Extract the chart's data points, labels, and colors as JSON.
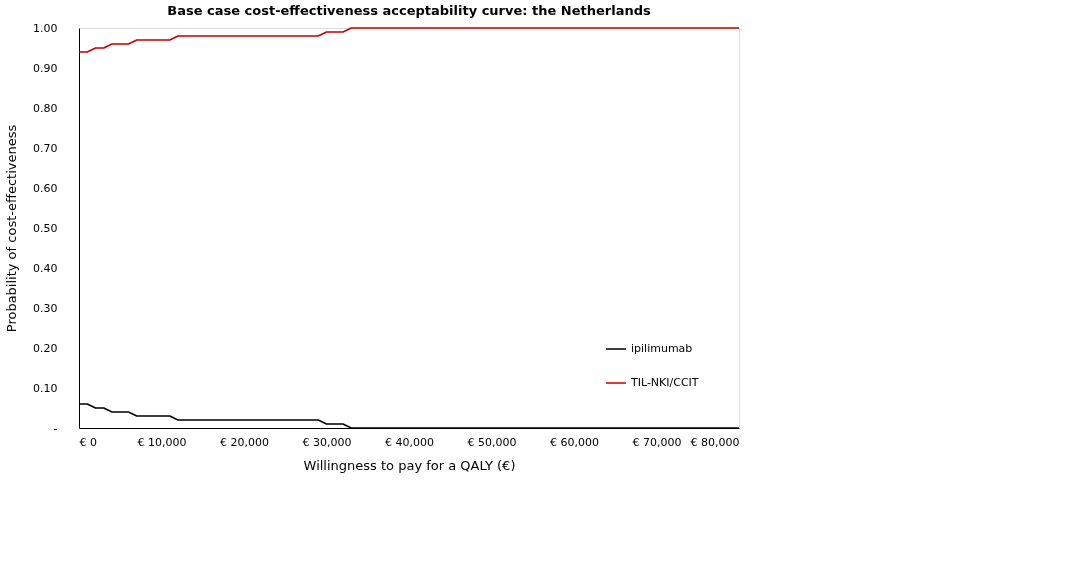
{
  "chart_data": {
    "type": "line",
    "title": "Base case cost-effectiveness acceptability curve: the Netherlands",
    "xlabel": "Willingness to pay for a QALY (€)",
    "ylabel": "Probability of cost-effectiveness",
    "x": [
      0,
      1000,
      2000,
      3000,
      4000,
      6000,
      7000,
      11000,
      12000,
      29000,
      30000,
      32000,
      33000,
      80000
    ],
    "series": [
      {
        "name": "ipilimumab",
        "color": "#000000",
        "values": [
          0.06,
          0.06,
          0.05,
          0.05,
          0.04,
          0.04,
          0.03,
          0.03,
          0.02,
          0.02,
          0.01,
          0.01,
          0.0,
          0.0
        ]
      },
      {
        "name": "TIL-NKI/CCIT",
        "color": "#c00000",
        "values": [
          0.94,
          0.94,
          0.95,
          0.95,
          0.96,
          0.96,
          0.97,
          0.97,
          0.98,
          0.98,
          0.99,
          0.99,
          1.0,
          1.0
        ]
      }
    ],
    "xlim": [
      0,
      80000
    ],
    "xticks": [
      {
        "value": 0,
        "label": "€ 0"
      },
      {
        "value": 10000,
        "label": "€ 10,000"
      },
      {
        "value": 20000,
        "label": "€ 20,000"
      },
      {
        "value": 30000,
        "label": "€ 30,000"
      },
      {
        "value": 40000,
        "label": "€ 40,000"
      },
      {
        "value": 50000,
        "label": "€ 50,000"
      },
      {
        "value": 60000,
        "label": "€ 60,000"
      },
      {
        "value": 70000,
        "label": "€ 70,000"
      },
      {
        "value": 80000,
        "label": "€ 80,000"
      }
    ],
    "ylim": [
      0,
      1.0
    ],
    "yticks": [
      {
        "value": 0,
        "label": "-"
      },
      {
        "value": 0.1,
        "label": "0.10"
      },
      {
        "value": 0.2,
        "label": "0.20"
      },
      {
        "value": 0.3,
        "label": "0.30"
      },
      {
        "value": 0.4,
        "label": "0.40"
      },
      {
        "value": 0.5,
        "label": "0.50"
      },
      {
        "value": 0.6,
        "label": "0.60"
      },
      {
        "value": 0.7,
        "label": "0.70"
      },
      {
        "value": 0.8,
        "label": "0.80"
      },
      {
        "value": 0.9,
        "label": "0.90"
      },
      {
        "value": 1.0,
        "label": "1.00"
      }
    ],
    "grid": false,
    "legend": "bottom right",
    "marker": "none",
    "line_style": "solid"
  }
}
